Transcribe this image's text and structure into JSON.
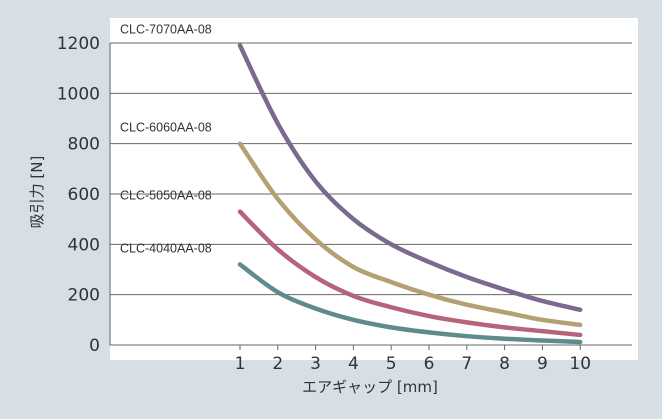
{
  "chart_data": {
    "type": "line",
    "xlabel": "エアギャップ [mm]",
    "ylabel": "吸引力 [N]",
    "x": [
      1,
      2,
      3,
      4,
      5,
      6,
      7,
      8,
      9,
      10
    ],
    "xticks": [
      "1",
      "2",
      "3",
      "4",
      "5",
      "6",
      "7",
      "8",
      "9",
      "10"
    ],
    "yticks": [
      "0",
      "200",
      "400",
      "600",
      "800",
      "1000",
      "1200"
    ],
    "ylim": [
      0,
      1200
    ],
    "xlim": [
      0,
      10
    ],
    "grid": "horizontal",
    "legend": "inline labels",
    "series": [
      {
        "name": "CLC-7070AA-08",
        "color": "#7a6a8f",
        "values": [
          1190,
          880,
          650,
          500,
          400,
          330,
          270,
          220,
          175,
          140
        ]
      },
      {
        "name": "CLC-6060AA-08",
        "color": "#b3a173",
        "values": [
          800,
          580,
          420,
          310,
          250,
          200,
          160,
          130,
          100,
          80
        ]
      },
      {
        "name": "CLC-5050AA-08",
        "color": "#b5647a",
        "values": [
          530,
          380,
          270,
          195,
          150,
          115,
          90,
          70,
          55,
          40
        ]
      },
      {
        "name": "CLC-4040AA-08",
        "color": "#5e8b8c",
        "values": [
          320,
          210,
          145,
          100,
          70,
          50,
          35,
          25,
          18,
          12
        ]
      }
    ]
  }
}
